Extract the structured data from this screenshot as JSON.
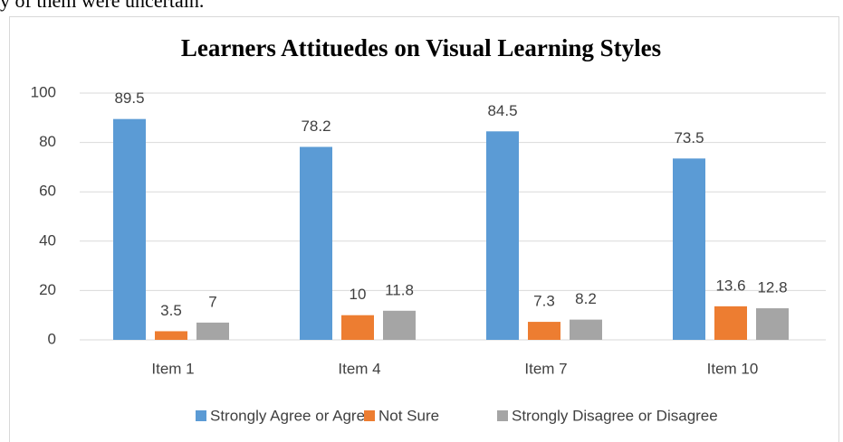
{
  "caption": "y of them were uncertain.",
  "chart_data": {
    "type": "bar",
    "title": "Learners Attituedes on Visual Learning Styles",
    "categories": [
      "Item 1",
      "Item 4",
      "Item 7",
      "Item 10"
    ],
    "series": [
      {
        "name": "Strongly Agree or Agree",
        "color": "#5b9bd5",
        "values": [
          89.5,
          78.2,
          84.5,
          73.5
        ]
      },
      {
        "name": "Not Sure",
        "color": "#ed7d31",
        "values": [
          3.5,
          10,
          7.3,
          13.6
        ]
      },
      {
        "name": "Strongly Disagree or Disagree",
        "color": "#a5a5a5",
        "values": [
          7,
          11.8,
          8.2,
          12.8
        ]
      }
    ],
    "ylim": [
      0,
      100
    ],
    "yticks": [
      0,
      20,
      40,
      60,
      80,
      100
    ],
    "grid": true,
    "legend": "bottom"
  }
}
